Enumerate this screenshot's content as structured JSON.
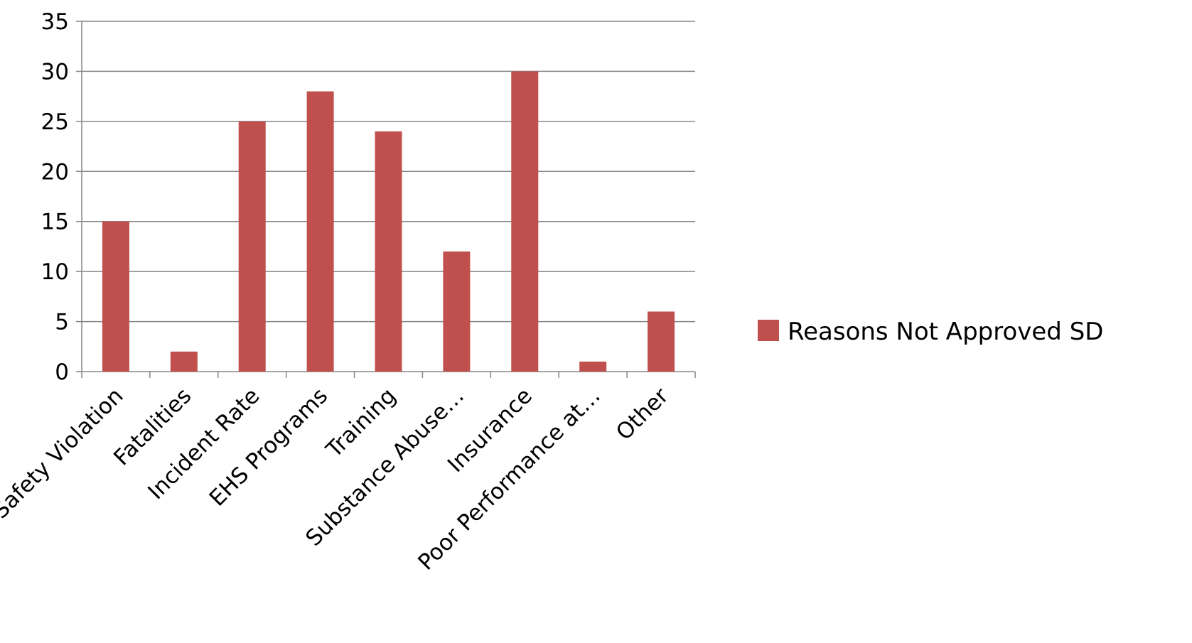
{
  "chart_data": {
    "type": "bar",
    "title": "",
    "xlabel": "",
    "ylabel": "",
    "categories": [
      "Safety Violation",
      "Fatalities",
      "Incident Rate",
      "EHS Programs",
      "Training",
      "Substance Abuse…",
      "Insurance",
      "Poor Performance at…",
      "Other"
    ],
    "series": [
      {
        "name": "Reasons Not Approved SD",
        "values": [
          15,
          2,
          25,
          28,
          24,
          12,
          30,
          1,
          6
        ],
        "color": "#c0504d"
      }
    ],
    "ylim": [
      0,
      35
    ],
    "yticks": [
      "0",
      "5",
      "10",
      "15",
      "20",
      "25",
      "30",
      "35"
    ],
    "grid": true,
    "legend_position": "right"
  }
}
